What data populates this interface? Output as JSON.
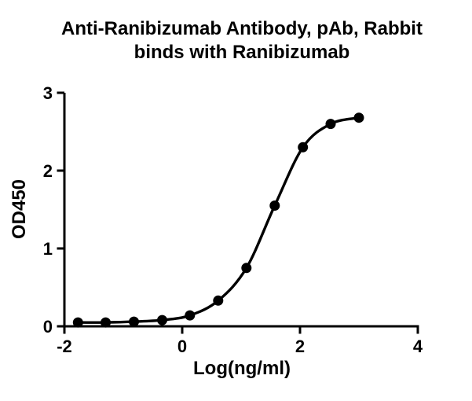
{
  "chart_data": {
    "type": "scatter",
    "title_lines": [
      "Anti-Ranibizumab Antibody, pAb, Rabbit",
      "binds with Ranibizumab"
    ],
    "xlabel": "Log(ng/ml)",
    "ylabel": "OD450",
    "xlim": [
      -2,
      4
    ],
    "ylim": [
      0,
      3
    ],
    "x_ticks": [
      -2,
      0,
      2,
      4
    ],
    "y_ticks": [
      0,
      1,
      2,
      3
    ],
    "grid": false,
    "legend": "none",
    "line_color": "#000000",
    "marker_color": "#000000",
    "background_color": "#ffffff",
    "points": [
      {
        "x": -1.77,
        "y": 0.05
      },
      {
        "x": -1.3,
        "y": 0.05
      },
      {
        "x": -0.82,
        "y": 0.06
      },
      {
        "x": -0.34,
        "y": 0.08
      },
      {
        "x": 0.13,
        "y": 0.14
      },
      {
        "x": 0.61,
        "y": 0.33
      },
      {
        "x": 1.09,
        "y": 0.75
      },
      {
        "x": 1.57,
        "y": 1.55
      },
      {
        "x": 2.05,
        "y": 2.3
      },
      {
        "x": 2.52,
        "y": 2.6
      },
      {
        "x": 3.0,
        "y": 2.68
      }
    ]
  }
}
